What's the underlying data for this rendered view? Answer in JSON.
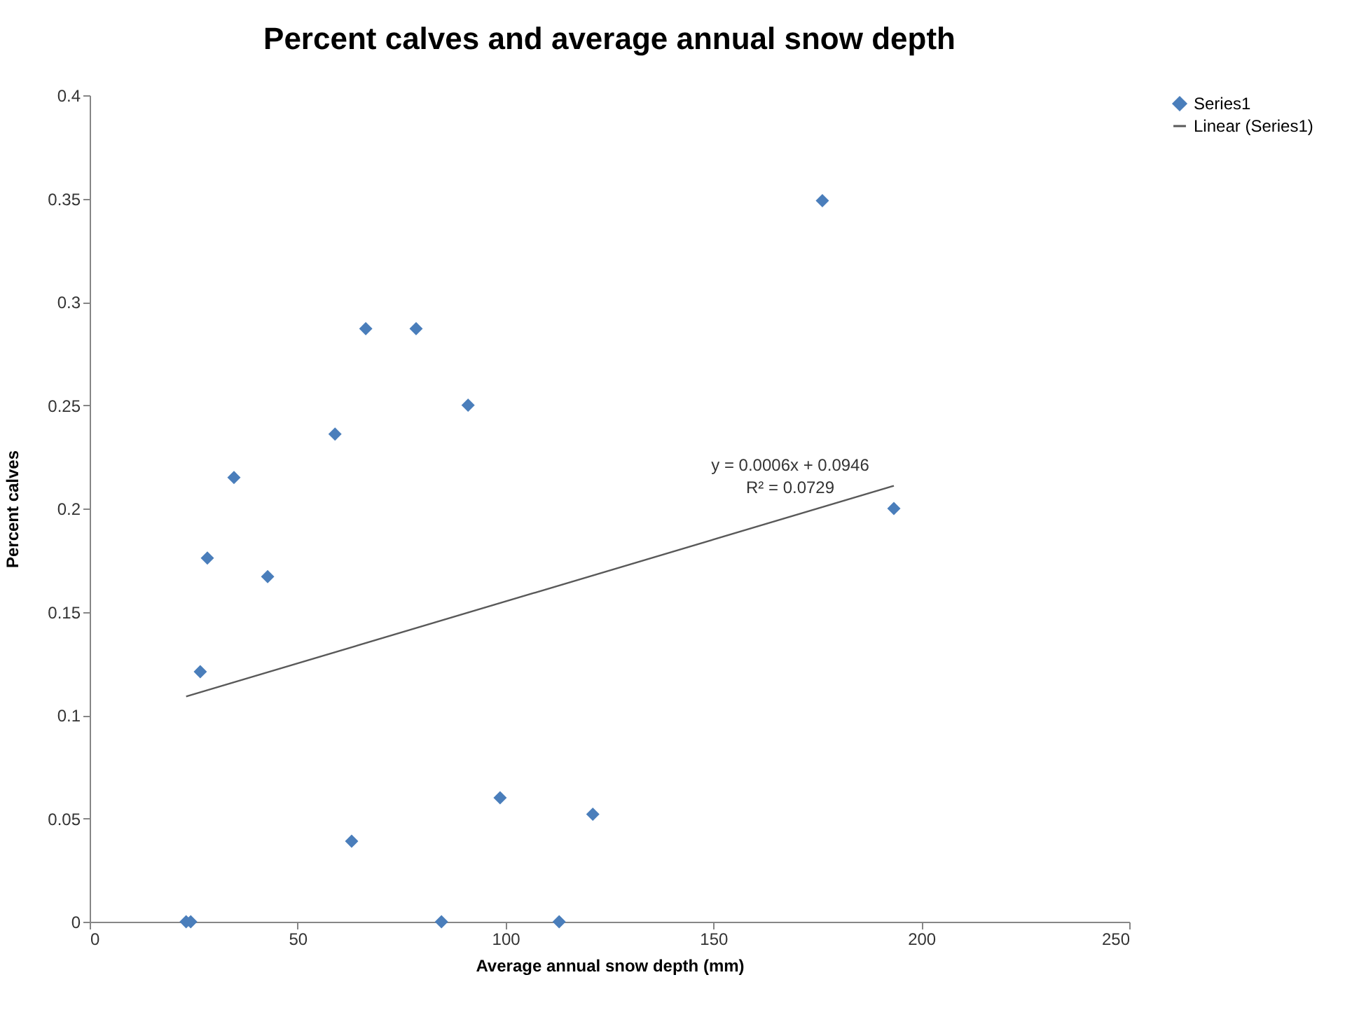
{
  "chart_data": {
    "type": "scatter",
    "title": "Percent calves and average annual snow depth",
    "xlabel": "Average annual snow depth (mm)",
    "ylabel": "Percent calves",
    "xlim": [
      0,
      250
    ],
    "xticks": [
      0,
      50,
      100,
      150,
      200,
      250
    ],
    "ylim": [
      0,
      0.4
    ],
    "yticks": [
      0,
      0.05,
      0.1,
      0.15,
      0.2,
      0.25,
      0.3,
      0.35,
      0.4
    ],
    "grid": false,
    "legend": "right",
    "series": [
      {
        "name": "Series1",
        "color": "#4a7ebb",
        "marker": "diamond",
        "x": [
          23.2,
          24.3,
          26.6,
          28.3,
          34.7,
          42.8,
          59.0,
          63.0,
          66.4,
          78.5,
          84.6,
          91.0,
          98.7,
          112.9,
          121.0,
          176.2,
          193.4
        ],
        "values": [
          0,
          0,
          0.121,
          0.176,
          0.215,
          0.167,
          0.236,
          0.039,
          0.287,
          0.287,
          0,
          0.25,
          0.06,
          0,
          0.052,
          0.349,
          0.2
        ]
      },
      {
        "name": "Linear (Series1)",
        "type": "line",
        "color": "#595959",
        "x": [
          23.2,
          193.4
        ],
        "values": [
          0.109,
          0.211
        ]
      }
    ],
    "annotations": [
      "y = 0.0006x + 0.0946",
      "R² = 0.0729"
    ]
  }
}
